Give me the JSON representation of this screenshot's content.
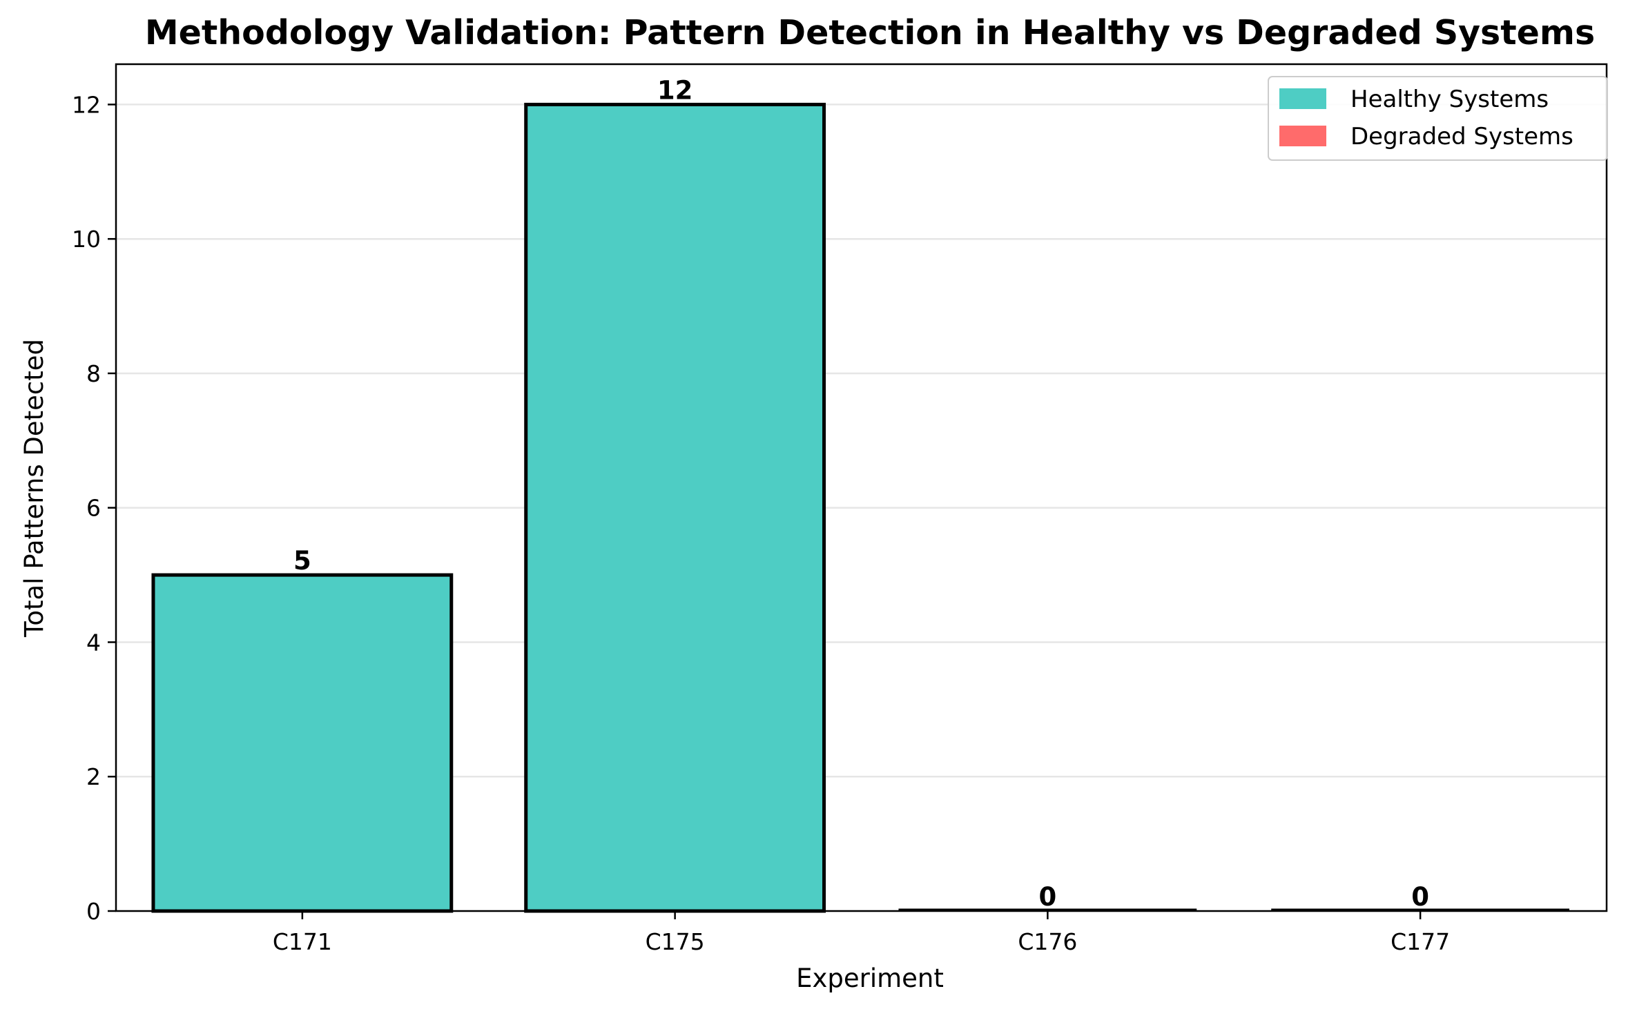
{
  "chart_data": {
    "type": "bar",
    "title": "Methodology Validation: Pattern Detection in Healthy vs Degraded Systems",
    "xlabel": "Experiment",
    "ylabel": "Total Patterns Detected",
    "categories": [
      "C171",
      "C175",
      "C176",
      "C177"
    ],
    "values": [
      5,
      12,
      0,
      0
    ],
    "bar_status": [
      "healthy",
      "healthy",
      "degraded",
      "degraded"
    ],
    "data_labels": [
      "5",
      "12",
      "0",
      "0"
    ],
    "ylim": [
      0,
      12.6
    ],
    "yticks": [
      0,
      2,
      4,
      6,
      8,
      10,
      12
    ],
    "ytick_labels": [
      "0",
      "2",
      "4",
      "6",
      "8",
      "10",
      "12"
    ],
    "grid": "y",
    "legend": {
      "placement": "top-right",
      "entries": [
        {
          "label": "Healthy Systems",
          "color": "#4ECDC4"
        },
        {
          "label": "Degraded Systems",
          "color": "#FF6B6B"
        }
      ]
    },
    "colors": {
      "healthy": "#4ECDC4",
      "degraded": "#FF6B6B",
      "bar_edge": "#000000",
      "grid": "#e6e6e6"
    }
  }
}
